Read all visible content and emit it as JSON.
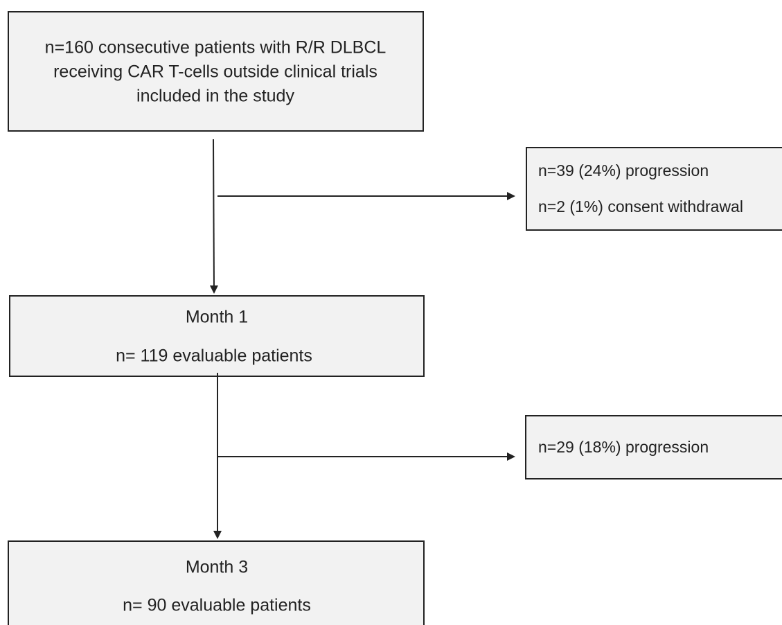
{
  "nodes": [
    {
      "lines": [
        "n=160 consecutive patients with R/R DLBCL",
        "receiving CAR T-cells outside clinical trials",
        "included in the study"
      ]
    },
    {
      "lines": [
        "n=39 (24%) progression",
        "n=2 (1%) consent withdrawal"
      ]
    },
    {
      "lines": [
        "Month 1",
        "n= 119 evaluable patients"
      ]
    },
    {
      "lines": [
        "n=29 (18%) progression"
      ]
    },
    {
      "lines": [
        "Month 3",
        "n= 90 evaluable patients"
      ]
    }
  ]
}
